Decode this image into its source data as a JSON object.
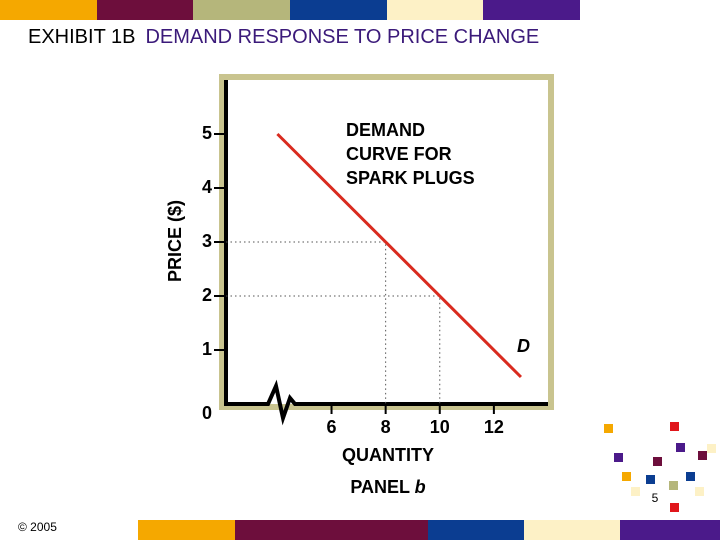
{
  "exhibit": "EXHIBIT 1B",
  "title": "DEMAND RESPONSE TO PRICE CHANGE",
  "footer": "© 2005",
  "page_number": "5",
  "chart_data": {
    "type": "line",
    "annotation": [
      "DEMAND",
      "CURVE FOR",
      "SPARK PLUGS"
    ],
    "ylabel": "PRICE ($)",
    "xlabel": "QUANTITY",
    "panel": [
      "PANEL",
      "b"
    ],
    "series": [
      {
        "label": "D",
        "color": "#d92b1f",
        "x": [
          4,
          13
        ],
        "values": [
          5,
          0.5
        ]
      }
    ],
    "guides": [
      {
        "x": 8,
        "y": 3
      },
      {
        "x": 10,
        "y": 2
      }
    ],
    "xlim": [
      2.1,
      14
    ],
    "xticks": [
      6,
      8,
      10,
      12
    ],
    "ylim": [
      0,
      6
    ],
    "yticks": [
      0,
      1,
      2,
      3,
      4,
      5
    ]
  }
}
